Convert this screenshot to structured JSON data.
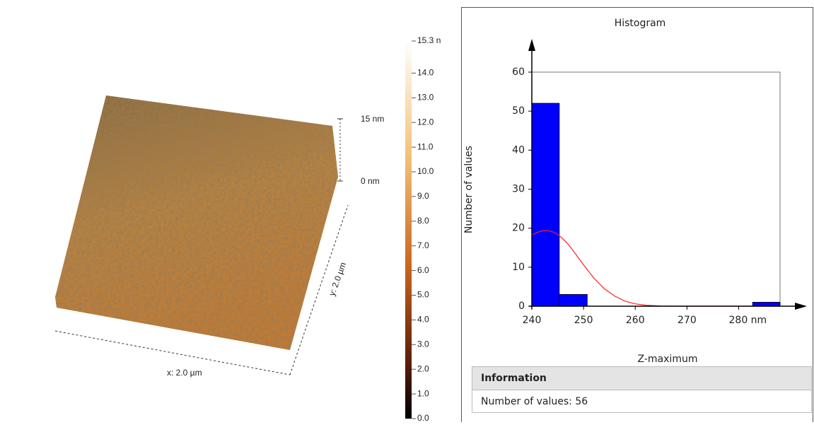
{
  "chart_data": [
    {
      "type": "surface",
      "x_label": "x: 2.0 µm",
      "y_label": "y: 2.0 µm",
      "zscale": [
        {
          "value": 15,
          "label": "15 nm"
        },
        {
          "value": 0,
          "label": "0 nm"
        }
      ],
      "zlim": [
        0,
        15.3
      ],
      "zticks": [
        {
          "value": 15.3,
          "label": "15.3 n"
        },
        {
          "value": 14,
          "label": "14.0"
        },
        {
          "value": 13,
          "label": "13.0"
        },
        {
          "value": 12,
          "label": "12.0"
        },
        {
          "value": 11,
          "label": "11.0"
        },
        {
          "value": 10,
          "label": "10.0"
        },
        {
          "value": 9,
          "label": "9.0"
        },
        {
          "value": 8,
          "label": "8.0"
        },
        {
          "value": 7,
          "label": "7.0"
        },
        {
          "value": 6,
          "label": "6.0"
        },
        {
          "value": 5,
          "label": "5.0"
        },
        {
          "value": 4,
          "label": "4.0"
        },
        {
          "value": 3,
          "label": "3.0"
        },
        {
          "value": 2,
          "label": "2.0"
        },
        {
          "value": 1,
          "label": "1.0"
        },
        {
          "value": 0,
          "label": "0.0"
        }
      ]
    },
    {
      "type": "histogram",
      "title": "Histogram",
      "x_label": "Z-maximum",
      "y_label": "Number of values",
      "bins": [
        240,
        245.3,
        250.7,
        256,
        261.3,
        266.7,
        272,
        277.3,
        282.7,
        288
      ],
      "values": [
        52,
        3,
        0,
        0,
        0,
        0,
        0,
        0,
        1
      ],
      "color": "#0000ff",
      "curve": {
        "color": "#ff2020",
        "x": [
          240,
          241,
          242,
          243,
          244,
          245,
          246,
          247,
          248,
          249,
          250,
          252,
          254,
          256,
          258,
          260,
          262,
          265,
          270,
          280,
          288
        ],
        "values": [
          18.2,
          18.9,
          19.3,
          19.4,
          19.1,
          18.4,
          17.3,
          15.9,
          14.2,
          12.4,
          10.6,
          7.2,
          4.5,
          2.6,
          1.3,
          0.6,
          0.25,
          0.05,
          0,
          0,
          0
        ]
      },
      "xlim": [
        240,
        288
      ],
      "ylim": [
        0,
        60
      ],
      "xticks": [
        240,
        250,
        260,
        270,
        {
          "value": 280,
          "label": "280 nm"
        }
      ],
      "yticks": [
        0,
        10,
        20,
        30,
        40,
        50,
        60
      ]
    }
  ],
  "info": {
    "title": "Information",
    "rows": [
      "Number of values: 56"
    ]
  }
}
